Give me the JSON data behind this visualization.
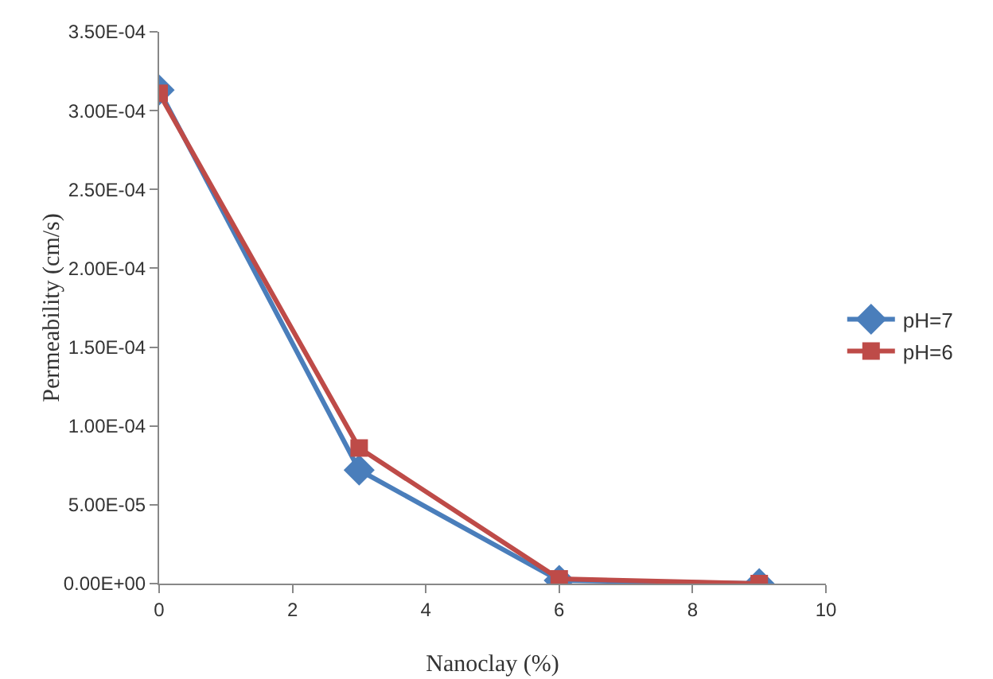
{
  "chart_data": {
    "type": "line",
    "xlabel": "Nanoclay (%)",
    "ylabel": "Permeability (cm/s)",
    "x": [
      0,
      3,
      6,
      9
    ],
    "series": [
      {
        "name": "pH=7",
        "color": "#4a7ebb",
        "values": [
          0.000313,
          7.2e-05,
          2e-06,
          0
        ],
        "marker": "diamond"
      },
      {
        "name": "pH=6",
        "color": "#be4b48",
        "values": [
          0.000311,
          8.6e-05,
          3e-06,
          0
        ],
        "marker": "square"
      }
    ],
    "xlim": [
      0,
      10
    ],
    "xticks": [
      0,
      2,
      4,
      6,
      8,
      10
    ],
    "ylim": [
      0,
      0.00035
    ],
    "yticks": [
      {
        "value": 0,
        "label": "0.00E+00"
      },
      {
        "value": 5e-05,
        "label": "5.00E-05"
      },
      {
        "value": 0.0001,
        "label": "1.00E-04"
      },
      {
        "value": 0.00015,
        "label": "1.50E-04"
      },
      {
        "value": 0.0002,
        "label": "2.00E-04"
      },
      {
        "value": 0.00025,
        "label": "2.50E-04"
      },
      {
        "value": 0.0003,
        "label": "3.00E-04"
      },
      {
        "value": 0.00035,
        "label": "3.50E-04"
      }
    ],
    "grid": false,
    "legend": "right",
    "line_style": "solid"
  }
}
